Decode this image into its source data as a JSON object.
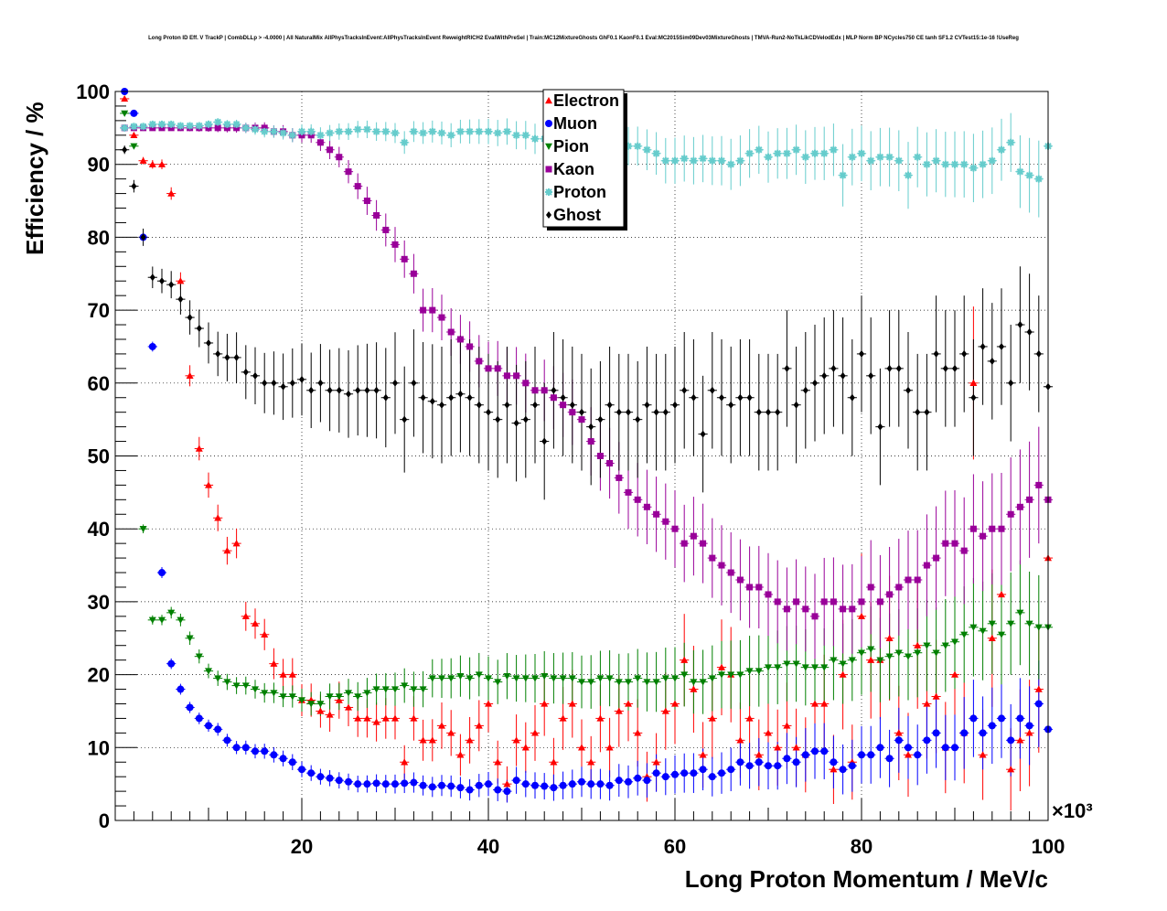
{
  "chart_data": {
    "type": "scatter",
    "title": "Long Proton ID Eff. V TrackP | CombDLLp > -4.0000 | All NaturalMix AllPhysTracksInEvent:AllPhysTracksInEvent ReweightRICH2 EvalWithPreSel | Train:MC12MixtureGhosts GhF0.1 KaonF0.1 Eval:MC2015Sim09Dev03MixtureGhosts | TMVA-Run2-NoTkLikCDVelodEdx | MLP Norm BP NCycles750 CE tanh SF1.2 CVTest15:1e-16 !UseReg",
    "xlabel": "Long Proton Momentum / MeV/c",
    "ylabel": "Efficiency / %",
    "x_multiplier": "×10³",
    "x_unit_scale": 1000,
    "xlim": [
      0,
      100
    ],
    "ylim": [
      0,
      100
    ],
    "xticks": [
      20,
      40,
      60,
      80,
      100
    ],
    "yticks": [
      0,
      10,
      20,
      30,
      40,
      50,
      60,
      70,
      80,
      90,
      100
    ],
    "grid": true,
    "legend_position": "top-center",
    "x": [
      1,
      2,
      3,
      4,
      5,
      6,
      7,
      8,
      9,
      10,
      11,
      12,
      13,
      14,
      15,
      16,
      17,
      18,
      19,
      20,
      21,
      22,
      23,
      24,
      25,
      26,
      27,
      28,
      29,
      30,
      31,
      32,
      33,
      34,
      35,
      36,
      37,
      38,
      39,
      40,
      41,
      42,
      43,
      44,
      45,
      46,
      47,
      48,
      49,
      50,
      51,
      52,
      53,
      54,
      55,
      56,
      57,
      58,
      59,
      60,
      61,
      62,
      63,
      64,
      65,
      66,
      67,
      68,
      69,
      70,
      71,
      72,
      73,
      74,
      75,
      76,
      77,
      78,
      79,
      80,
      81,
      82,
      83,
      84,
      85,
      86,
      87,
      88,
      89,
      90,
      91,
      92,
      93,
      94,
      95,
      96,
      97,
      98,
      99,
      100
    ],
    "series": [
      {
        "name": "Electron",
        "color": "#ff0000",
        "marker": "triangle-up",
        "values": [
          99,
          94,
          90.5,
          90,
          90,
          86,
          74,
          61,
          51,
          46,
          41.5,
          37,
          38,
          28,
          27,
          25.5,
          21.5,
          20,
          20,
          16.5,
          16.5,
          15,
          14.5,
          16.5,
          15.5,
          14,
          14,
          13.5,
          14,
          14,
          8,
          14,
          11,
          11,
          13,
          12,
          9,
          11,
          13,
          16,
          8,
          5,
          11,
          10,
          12,
          16,
          8,
          14,
          16,
          10,
          8,
          14,
          10,
          15,
          16,
          12,
          6,
          8,
          15,
          16,
          22,
          18,
          9,
          14,
          21,
          20,
          11,
          14,
          9,
          12,
          10,
          13,
          10,
          9,
          16,
          16,
          7,
          20,
          8,
          28,
          22,
          22,
          25,
          12,
          9,
          24,
          16,
          17,
          10,
          20,
          12,
          60,
          9,
          25,
          31,
          7,
          11,
          12,
          18,
          36
        ]
      },
      {
        "name": "Muon",
        "color": "#0000ff",
        "marker": "circle",
        "values": [
          100,
          97,
          80,
          65,
          34,
          21.5,
          18,
          15.5,
          14,
          13,
          12.5,
          11,
          10,
          10,
          9.5,
          9.5,
          9,
          8.5,
          8,
          7,
          6.5,
          6,
          5.8,
          5.5,
          5.3,
          5,
          5,
          5.1,
          5,
          5,
          5.1,
          5.2,
          4.8,
          4.6,
          4.8,
          4.7,
          4.5,
          4.2,
          4.8,
          5,
          4.2,
          4,
          5.5,
          5,
          4.8,
          4.7,
          4.5,
          4.8,
          5,
          5.3,
          5,
          5,
          4.8,
          5.5,
          5.3,
          5.8,
          5.5,
          6.5,
          6,
          6.3,
          6.5,
          6.5,
          7,
          6,
          6.5,
          7,
          8,
          7.5,
          8,
          7.5,
          7.5,
          8.5,
          8,
          9,
          9.5,
          9.5,
          8,
          7,
          7.5,
          9,
          9,
          10,
          8.5,
          11,
          10,
          9,
          11,
          12,
          10,
          10,
          12,
          14,
          12,
          13,
          14,
          11,
          14,
          13,
          16,
          12.5
        ]
      },
      {
        "name": "Pion",
        "color": "#008000",
        "marker": "triangle-down",
        "values": [
          97,
          92.5,
          40,
          27.5,
          27.5,
          28.5,
          27.5,
          25,
          22.5,
          20.5,
          19.5,
          19,
          18.5,
          18.5,
          18,
          17.5,
          17.5,
          17,
          17,
          16.5,
          16,
          16,
          17,
          17,
          17.5,
          17,
          17.5,
          18,
          18,
          18,
          18.5,
          18,
          18,
          19.5,
          19.5,
          19.5,
          19.8,
          19.5,
          20,
          19.5,
          19,
          19.8,
          19.5,
          19.5,
          19.5,
          19.8,
          19.5,
          19.5,
          19.5,
          19,
          19,
          19.5,
          19.5,
          19,
          19,
          19.5,
          19,
          19,
          19.5,
          19.5,
          20,
          19,
          19,
          19.5,
          20,
          20,
          20,
          20.5,
          20.5,
          21,
          21,
          21.5,
          21.5,
          21,
          21,
          21,
          22,
          21.5,
          22,
          23,
          23.5,
          22,
          22.5,
          23,
          22.5,
          23,
          24,
          23,
          24,
          24.5,
          25.5,
          26.5,
          26,
          27,
          25.5,
          27,
          28.5,
          27,
          26.5,
          26.5
        ]
      },
      {
        "name": "Kaon",
        "color": "#990099",
        "marker": "square",
        "values": [
          95,
          95,
          95,
          95,
          95,
          95,
          95,
          95,
          95,
          95,
          95,
          95,
          95,
          95,
          95,
          95,
          94.5,
          94.5,
          94,
          94,
          94,
          93,
          92,
          91,
          89,
          87,
          85,
          83,
          81,
          79,
          77,
          75,
          70,
          70,
          69,
          67,
          66,
          65,
          63,
          62,
          62,
          61,
          61,
          60,
          59,
          59,
          58,
          57,
          56,
          55,
          52,
          50,
          49,
          47,
          45,
          44,
          43,
          42,
          41,
          40,
          38,
          39,
          38,
          36,
          35,
          34,
          33,
          32,
          32,
          31,
          30,
          29,
          30,
          29,
          28,
          30,
          30,
          29,
          29,
          30,
          32,
          30,
          31,
          32,
          33,
          33,
          35,
          36,
          38,
          38,
          37,
          40,
          39,
          40,
          40,
          42,
          43,
          44,
          46,
          44
        ]
      },
      {
        "name": "Proton",
        "color": "#66cccc",
        "marker": "star",
        "values": [
          95,
          95.2,
          95.2,
          95.5,
          95.5,
          95.5,
          95.3,
          95.3,
          95.3,
          95.5,
          95.8,
          95.5,
          95.5,
          95,
          94.8,
          94.5,
          94.5,
          94.3,
          94,
          94.5,
          94.5,
          94,
          94.3,
          94.5,
          94.5,
          94.8,
          94.8,
          94.5,
          94.5,
          94.3,
          93,
          94.5,
          94.3,
          94.5,
          94.3,
          94,
          94.5,
          94.5,
          94.5,
          94.5,
          94.3,
          94.5,
          94,
          94,
          93.5,
          93.5,
          93.3,
          93,
          92.5,
          92,
          92,
          91.5,
          91.5,
          91,
          92.5,
          92.5,
          92,
          91.5,
          90.5,
          90.5,
          90.8,
          90.5,
          90.8,
          90.5,
          90.5,
          90,
          90.5,
          91.5,
          92,
          91,
          91.5,
          91.5,
          92,
          91,
          91.5,
          91.5,
          92,
          88.5,
          91,
          91.5,
          90.5,
          91,
          91,
          90.5,
          88.5,
          91,
          90,
          90.5,
          90,
          90,
          90,
          89.5,
          90,
          90.5,
          92,
          93,
          89,
          88.5,
          88,
          92.5
        ]
      },
      {
        "name": "Ghost",
        "color": "#000000",
        "marker": "diamond",
        "values": [
          92,
          87,
          80,
          74.5,
          74,
          73.5,
          71.5,
          69,
          67.5,
          65.5,
          64,
          63.5,
          63.5,
          61.5,
          61,
          60,
          60,
          59.5,
          60,
          60.5,
          59,
          60,
          59,
          59,
          58.5,
          59,
          59,
          59,
          58,
          60,
          55,
          60,
          58,
          57.5,
          57,
          58,
          58.5,
          58,
          57,
          56,
          55,
          57,
          54.5,
          55,
          57,
          52,
          59,
          58,
          57,
          56,
          54,
          55,
          57,
          56,
          56,
          55,
          57,
          56,
          56,
          57,
          59,
          58,
          53,
          59,
          58,
          57,
          58,
          58,
          56,
          56,
          56,
          62,
          57,
          59,
          60,
          61,
          62,
          61,
          58,
          64,
          61,
          54,
          62,
          62,
          59,
          56,
          56,
          64,
          62,
          62,
          64,
          58,
          65,
          63,
          65,
          60,
          68,
          67,
          64,
          59.5
        ]
      }
    ]
  },
  "legend": {
    "items": [
      {
        "label": "Electron"
      },
      {
        "label": "Muon"
      },
      {
        "label": "Pion"
      },
      {
        "label": "Kaon"
      },
      {
        "label": "Proton"
      },
      {
        "label": "Ghost"
      }
    ]
  }
}
